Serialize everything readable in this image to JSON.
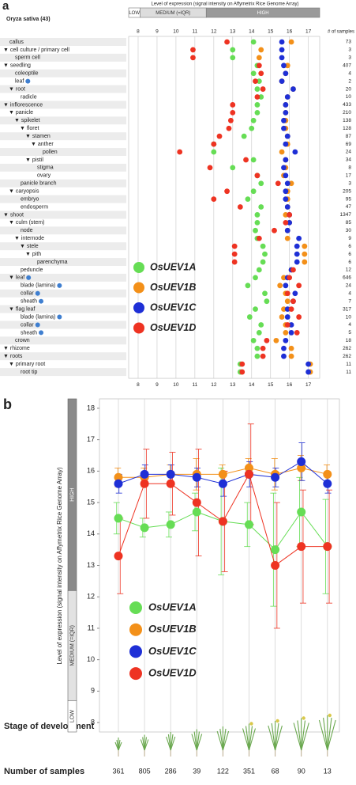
{
  "chart_data": [
    {
      "type": "dot",
      "panel": "a",
      "species": "Oryza sativa (43)",
      "title": "Level of expression (signal intensity on Affymetrix Rice Genome Array)",
      "bands": [
        {
          "label": "LOW",
          "from": 7.5,
          "to": 8.1,
          "color": "#ffffff",
          "text_color": "#333333"
        },
        {
          "label": "MEDIUM (=IQR)",
          "from": 8.1,
          "to": 11.6,
          "color": "#dddddd",
          "text_color": "#333333"
        },
        {
          "label": "HIGH",
          "from": 11.6,
          "to": 17.6,
          "color": "#9a9a9a",
          "text_color": "#ffffff"
        }
      ],
      "samples_header": "# of samples",
      "xlim": [
        7.5,
        17.6
      ],
      "xticks": [
        8,
        9,
        10,
        11,
        12,
        13,
        14,
        15,
        16,
        17
      ],
      "grid": true,
      "categories": [
        "callus",
        "▼ cell culture / primary cell",
        "sperm cell",
        "▼ seedling",
        "coleoptile",
        "leaf",
        "▼ root",
        "radicle",
        "▼ inflorescence",
        "▼ panicle",
        "▼ spikelet",
        "▼ floret",
        "▼ stamen",
        "▼ anther",
        "pollen",
        "▼ pistil",
        "stigma",
        "ovary",
        "panicle branch",
        "▼ caryopsis",
        "embryo",
        "endosperm",
        "▼ shoot",
        "▼ culm (stem)",
        "node",
        "▼ internode",
        "▼ stele",
        "▼ pith",
        "parenchyma",
        "peduncle",
        "▼ leaf",
        "blade (lamina)",
        "collar",
        "sheath",
        "▼ flag leaf",
        "blade (lamina)",
        "collar",
        "sheath",
        "crown",
        "▼ rhizome",
        "▼ roots",
        "▼ primary root",
        "root tip"
      ],
      "samples": [
        73,
        3,
        3,
        407,
        4,
        2,
        20,
        10,
        433,
        210,
        138,
        128,
        87,
        69,
        24,
        34,
        8,
        17,
        3,
        205,
        95,
        47,
        1347,
        85,
        30,
        9,
        6,
        6,
        6,
        12,
        646,
        24,
        4,
        7,
        317,
        10,
        4,
        5,
        18,
        262,
        262,
        11,
        11
      ],
      "series": [
        {
          "name": "OsUEV1A",
          "color": "#66dd55",
          "values": [
            14.1,
            13.0,
            13.0,
            14.3,
            14.1,
            14.4,
            14.3,
            14.5,
            14.3,
            14.3,
            14.1,
            14.0,
            13.6,
            12.0,
            12.0,
            14.1,
            13.0,
            14.3,
            14.5,
            14.1,
            13.8,
            14.5,
            14.3,
            14.3,
            14.2,
            14.3,
            14.6,
            14.7,
            14.6,
            14.4,
            14.2,
            13.8,
            14.7,
            14.8,
            14.2,
            13.9,
            14.5,
            14.4,
            14.1,
            14.3,
            14.3,
            13.4,
            13.4
          ]
        },
        {
          "name": "OsUEV1B",
          "color": "#f39019",
          "values": [
            16.1,
            14.5,
            14.4,
            15.9,
            15.8,
            15.6,
            16.2,
            15.9,
            15.8,
            15.8,
            15.8,
            15.8,
            15.9,
            15.9,
            15.6,
            15.8,
            15.8,
            15.7,
            16.1,
            15.9,
            15.9,
            15.9,
            15.8,
            16.0,
            15.9,
            15.9,
            16.8,
            16.8,
            16.8,
            16.1,
            15.7,
            15.5,
            15.8,
            15.9,
            15.7,
            15.6,
            15.8,
            15.8,
            15.3,
            16.1,
            16.1,
            17.1,
            17.1
          ]
        },
        {
          "name": "OsUEV1C",
          "color": "#1e2fd6",
          "values": [
            15.6,
            15.6,
            15.6,
            15.7,
            15.8,
            15.6,
            16.2,
            15.9,
            15.8,
            15.8,
            15.7,
            15.7,
            15.9,
            15.8,
            16.3,
            15.8,
            15.7,
            15.8,
            15.9,
            15.8,
            15.8,
            15.9,
            16.0,
            16.0,
            15.9,
            16.5,
            16.4,
            16.4,
            16.4,
            16.1,
            15.9,
            15.8,
            16.3,
            16.2,
            15.9,
            15.9,
            16.1,
            16.1,
            15.8,
            15.7,
            15.7,
            17.0,
            17.0
          ]
        },
        {
          "name": "OsUEV1D",
          "color": "#ee3322",
          "values": [
            12.7,
            10.9,
            10.9,
            14.4,
            14.5,
            14.2,
            14.6,
            14.3,
            13.0,
            13.0,
            12.9,
            12.8,
            12.3,
            12.0,
            10.2,
            13.7,
            11.8,
            14.3,
            15.4,
            12.7,
            12.0,
            13.4,
            16.0,
            15.8,
            15.2,
            14.4,
            13.1,
            13.1,
            13.1,
            16.2,
            16.0,
            16.5,
            15.9,
            16.2,
            16.1,
            16.5,
            15.9,
            16.4,
            14.8,
            14.6,
            14.6,
            13.5,
            13.5
          ]
        }
      ]
    },
    {
      "type": "line",
      "panel": "b",
      "y_label": "Level of expression (signal intensity on Affymetrix Rice Genome Array)",
      "bands": [
        {
          "label": "LOW",
          "from": 7.7,
          "to": 8.7,
          "color": "#ffffff",
          "text_color": "#333333"
        },
        {
          "label": "MEDIUM (=IQR)",
          "from": 8.7,
          "to": 12.2,
          "color": "#e2e2e2",
          "text_color": "#333333"
        },
        {
          "label": "HIGH",
          "from": 12.2,
          "to": 18.3,
          "color": "#8a8a8a",
          "text_color": "#ffffff"
        }
      ],
      "ylim": [
        7.7,
        18.3
      ],
      "yticks": [
        8,
        9,
        10,
        11,
        12,
        13,
        14,
        15,
        16,
        17,
        18
      ],
      "grid": true,
      "x_label": "Stage of development",
      "samples_label": "Number of samples",
      "samples": [
        361,
        805,
        286,
        39,
        122,
        351,
        68,
        90,
        13
      ],
      "series": [
        {
          "name": "OsUEV1A",
          "color": "#66dd55",
          "values": [
            14.5,
            14.2,
            14.3,
            14.7,
            14.4,
            14.3,
            13.5,
            14.7,
            13.6
          ],
          "errors": [
            0.5,
            0.3,
            0.4,
            0.6,
            1.7,
            0.7,
            1.8,
            1.1,
            1.5
          ]
        },
        {
          "name": "OsUEV1B",
          "color": "#f39019",
          "values": [
            15.8,
            15.8,
            15.9,
            15.9,
            15.9,
            16.1,
            15.9,
            16.1,
            15.9
          ],
          "errors": [
            0.3,
            0.3,
            0.3,
            0.5,
            0.3,
            0.3,
            0.5,
            0.4,
            0.3
          ]
        },
        {
          "name": "OsUEV1C",
          "color": "#1e2fd6",
          "values": [
            15.6,
            15.9,
            15.9,
            15.8,
            15.6,
            15.9,
            15.8,
            16.3,
            15.6
          ],
          "errors": [
            0.3,
            0.3,
            0.3,
            0.3,
            0.4,
            0.4,
            0.3,
            0.6,
            0.3
          ]
        },
        {
          "name": "OsUEV1D",
          "color": "#ee3322",
          "values": [
            13.3,
            15.6,
            15.6,
            15.0,
            14.4,
            15.9,
            13.0,
            13.6,
            13.6
          ],
          "errors": [
            1.2,
            1.1,
            1.0,
            1.7,
            1.6,
            1.6,
            2.0,
            1.8,
            1.8
          ]
        }
      ]
    }
  ]
}
